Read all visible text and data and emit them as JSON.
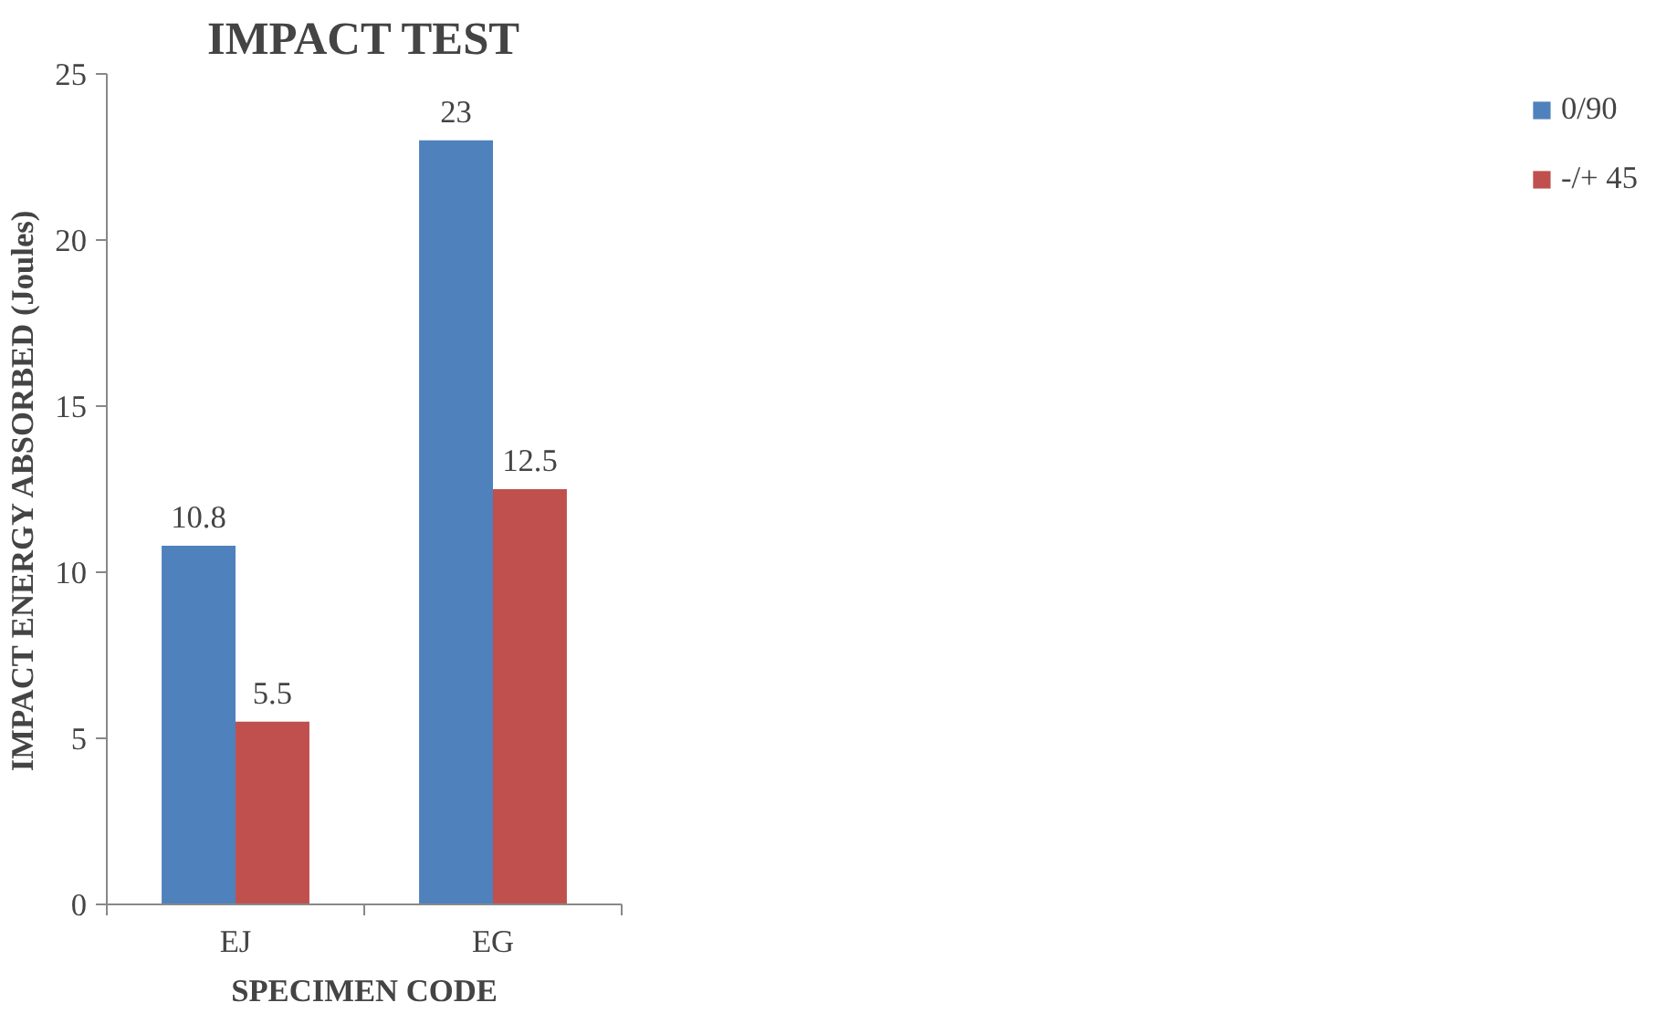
{
  "chart_data": {
    "type": "bar",
    "title": "IMPACT TEST",
    "xlabel": "SPECIMEN CODE",
    "ylabel": "IMPACT ENERGY ABSORBED (Joules)",
    "categories": [
      "EJ",
      "EG"
    ],
    "series": [
      {
        "name": "0/90",
        "color": "#4f81bd",
        "values": [
          10.8,
          23
        ]
      },
      {
        "name": "-/+ 45",
        "color": "#c0504d",
        "values": [
          5.5,
          12.5
        ]
      }
    ],
    "ylim": [
      0,
      25
    ],
    "yticks": [
      0,
      5,
      10,
      15,
      20,
      25
    ],
    "grid": false,
    "legend": "right",
    "data_labels": true
  }
}
